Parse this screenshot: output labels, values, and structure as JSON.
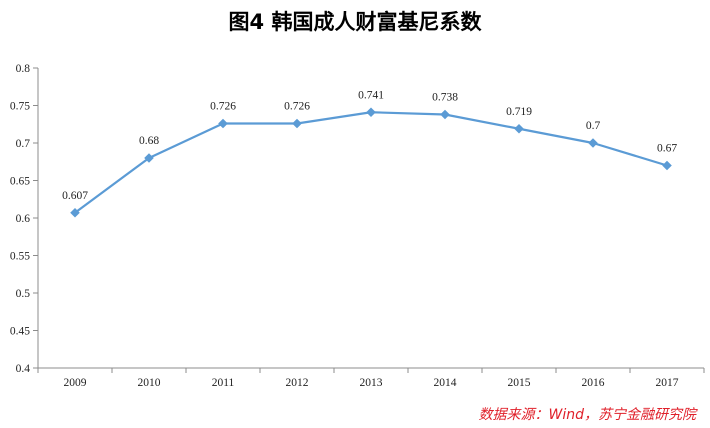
{
  "title": "图4    韩国成人财富基尼系数",
  "source": "数据来源：Wind，苏宁金融研究院",
  "colors": {
    "line": "#5b9bd5",
    "axis": "#8c8c8c",
    "source": "#e0202a"
  },
  "chart_data": {
    "type": "line",
    "categories": [
      "2009",
      "2010",
      "2011",
      "2012",
      "2013",
      "2014",
      "2015",
      "2016",
      "2017"
    ],
    "values": [
      0.607,
      0.68,
      0.726,
      0.726,
      0.741,
      0.738,
      0.719,
      0.7,
      0.67
    ],
    "value_labels": [
      "0.607",
      "0.68",
      "0.726",
      "0.726",
      "0.741",
      "0.738",
      "0.719",
      "0.7",
      "0.67"
    ],
    "title": "韩国成人财富基尼系数",
    "xlabel": "",
    "ylabel": "",
    "ylim": [
      0.4,
      0.8
    ],
    "yticks": [
      "0.4",
      "0.45",
      "0.5",
      "0.55",
      "0.6",
      "0.65",
      "0.7",
      "0.75",
      "0.8"
    ],
    "grid": false,
    "marker": "diamond"
  }
}
